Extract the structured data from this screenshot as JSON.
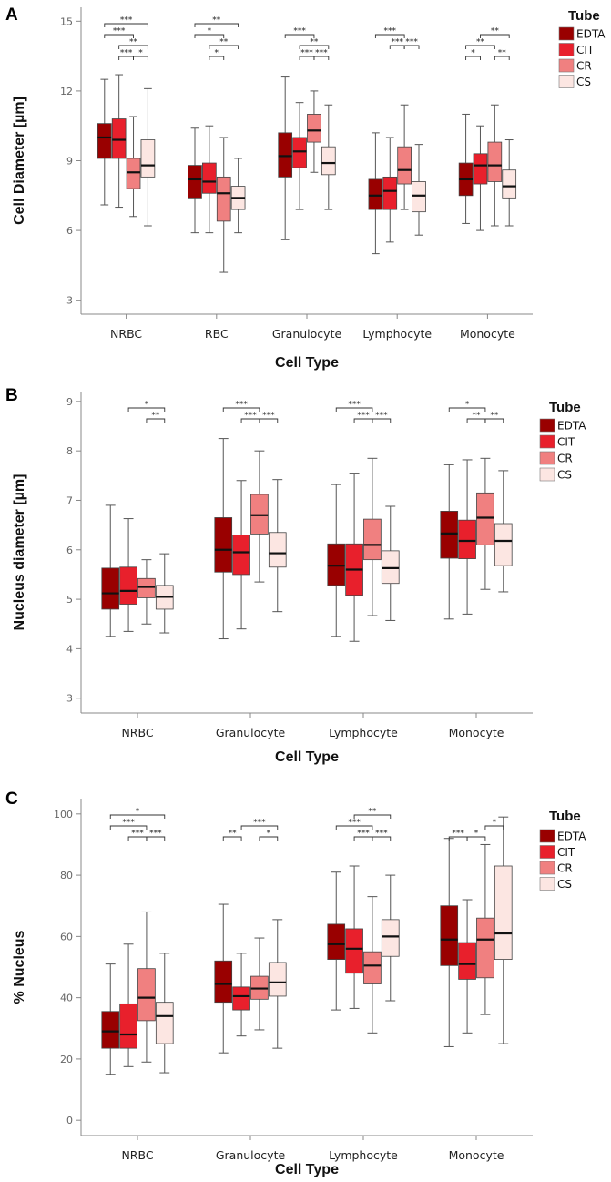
{
  "chart_data": [
    {
      "panel": "A",
      "type": "boxplot",
      "ylabel": "Cell Diameter [µm]",
      "xlabel": "Cell Type",
      "ylim": [
        2.4,
        15.6
      ],
      "yticks": [
        "3",
        "6",
        "9",
        "12",
        "15"
      ],
      "categories": [
        "NRBC",
        "RBC",
        "Granulocyte",
        "Lymphocyte",
        "Monocyte"
      ],
      "legend": {
        "title": "Tube",
        "entries": [
          "EDTA",
          "CIT",
          "CR",
          "CS"
        ]
      },
      "colors": [
        "#990000",
        "#e8202c",
        "#f08080",
        "#fce6e2"
      ],
      "series": [
        {
          "name": "EDTA",
          "boxes": [
            {
              "min": 7.1,
              "q1": 9.1,
              "median": 10.0,
              "q3": 10.6,
              "max": 12.5
            },
            {
              "min": 5.9,
              "q1": 7.4,
              "median": 8.2,
              "q3": 8.8,
              "max": 10.4
            },
            {
              "min": 5.6,
              "q1": 8.3,
              "median": 9.2,
              "q3": 10.2,
              "max": 12.6
            },
            {
              "min": 5.0,
              "q1": 6.9,
              "median": 7.5,
              "q3": 8.2,
              "max": 10.2
            },
            {
              "min": 6.3,
              "q1": 7.5,
              "median": 8.2,
              "q3": 8.9,
              "max": 11.0
            }
          ]
        },
        {
          "name": "CIT",
          "boxes": [
            {
              "min": 7.0,
              "q1": 9.1,
              "median": 9.9,
              "q3": 10.8,
              "max": 12.7
            },
            {
              "min": 5.9,
              "q1": 7.6,
              "median": 8.1,
              "q3": 8.9,
              "max": 10.5
            },
            {
              "min": 6.9,
              "q1": 8.7,
              "median": 9.4,
              "q3": 10.0,
              "max": 11.5
            },
            {
              "min": 5.5,
              "q1": 6.9,
              "median": 7.7,
              "q3": 8.3,
              "max": 10.0
            },
            {
              "min": 6.0,
              "q1": 8.0,
              "median": 8.8,
              "q3": 9.3,
              "max": 10.5
            }
          ]
        },
        {
          "name": "CR",
          "boxes": [
            {
              "min": 6.6,
              "q1": 7.8,
              "median": 8.5,
              "q3": 9.1,
              "max": 10.9
            },
            {
              "min": 4.2,
              "q1": 6.4,
              "median": 7.6,
              "q3": 8.3,
              "max": 10.0
            },
            {
              "min": 8.5,
              "q1": 9.8,
              "median": 10.3,
              "q3": 11.0,
              "max": 12.0
            },
            {
              "min": 6.9,
              "q1": 8.0,
              "median": 8.6,
              "q3": 9.6,
              "max": 11.4
            },
            {
              "min": 6.2,
              "q1": 8.1,
              "median": 8.8,
              "q3": 9.8,
              "max": 11.4
            }
          ]
        },
        {
          "name": "CS",
          "boxes": [
            {
              "min": 6.2,
              "q1": 8.3,
              "median": 8.8,
              "q3": 9.9,
              "max": 12.1
            },
            {
              "min": 5.9,
              "q1": 6.9,
              "median": 7.4,
              "q3": 7.9,
              "max": 9.1
            },
            {
              "min": 6.9,
              "q1": 8.4,
              "median": 8.9,
              "q3": 9.6,
              "max": 11.4
            },
            {
              "min": 5.8,
              "q1": 6.8,
              "median": 7.5,
              "q3": 8.1,
              "max": 9.7
            },
            {
              "min": 6.2,
              "q1": 7.4,
              "median": 7.9,
              "q3": 8.6,
              "max": 9.9
            }
          ]
        }
      ],
      "significance": [
        {
          "category": 0,
          "from": 0,
          "to": 3,
          "label": "***",
          "row": 0
        },
        {
          "category": 0,
          "from": 0,
          "to": 2,
          "label": "***",
          "row": 1
        },
        {
          "category": 0,
          "from": 1,
          "to": 3,
          "label": "**",
          "row": 2
        },
        {
          "category": 0,
          "from": 1,
          "to": 2,
          "label": "***",
          "row": 3
        },
        {
          "category": 0,
          "from": 2,
          "to": 3,
          "label": "*",
          "row": 3
        },
        {
          "category": 1,
          "from": 0,
          "to": 3,
          "label": "**",
          "row": 0
        },
        {
          "category": 1,
          "from": 0,
          "to": 2,
          "label": "*",
          "row": 1
        },
        {
          "category": 1,
          "from": 1,
          "to": 3,
          "label": "**",
          "row": 2
        },
        {
          "category": 1,
          "from": 1,
          "to": 2,
          "label": "*",
          "row": 3
        },
        {
          "category": 2,
          "from": 0,
          "to": 2,
          "label": "***",
          "row": 1
        },
        {
          "category": 2,
          "from": 1,
          "to": 3,
          "label": "**",
          "row": 2
        },
        {
          "category": 2,
          "from": 1,
          "to": 2,
          "label": "***",
          "row": 3
        },
        {
          "category": 2,
          "from": 2,
          "to": 3,
          "label": "***",
          "row": 3
        },
        {
          "category": 3,
          "from": 0,
          "to": 2,
          "label": "***",
          "row": 1
        },
        {
          "category": 3,
          "from": 1,
          "to": 2,
          "label": "***",
          "row": 2
        },
        {
          "category": 3,
          "from": 2,
          "to": 3,
          "label": "***",
          "row": 2
        },
        {
          "category": 4,
          "from": 1,
          "to": 3,
          "label": "**",
          "row": 1
        },
        {
          "category": 4,
          "from": 0,
          "to": 2,
          "label": "**",
          "row": 2
        },
        {
          "category": 4,
          "from": 0,
          "to": 1,
          "label": "*",
          "row": 3
        },
        {
          "category": 4,
          "from": 2,
          "to": 3,
          "label": "**",
          "row": 3
        }
      ]
    },
    {
      "panel": "B",
      "type": "boxplot",
      "ylabel": "Nucleus diameter [µm]",
      "xlabel": "Cell Type",
      "ylim": [
        2.7,
        9.2
      ],
      "yticks": [
        "3",
        "4",
        "5",
        "6",
        "7",
        "8",
        "9"
      ],
      "categories": [
        "NRBC",
        "Granulocyte",
        "Lymphocyte",
        "Monocyte"
      ],
      "legend": {
        "title": "Tube",
        "entries": [
          "EDTA",
          "CIT",
          "CR",
          "CS"
        ]
      },
      "colors": [
        "#990000",
        "#e8202c",
        "#f08080",
        "#fce6e2"
      ],
      "series": [
        {
          "name": "EDTA",
          "boxes": [
            {
              "min": 4.25,
              "q1": 4.8,
              "median": 5.12,
              "q3": 5.63,
              "max": 6.9
            },
            {
              "min": 4.2,
              "q1": 5.55,
              "median": 6.0,
              "q3": 6.65,
              "max": 8.25
            },
            {
              "min": 4.25,
              "q1": 5.28,
              "median": 5.68,
              "q3": 6.12,
              "max": 7.32
            },
            {
              "min": 4.6,
              "q1": 5.83,
              "median": 6.33,
              "q3": 6.78,
              "max": 7.72
            }
          ]
        },
        {
          "name": "CIT",
          "boxes": [
            {
              "min": 4.35,
              "q1": 4.9,
              "median": 5.17,
              "q3": 5.65,
              "max": 6.63
            },
            {
              "min": 4.4,
              "q1": 5.5,
              "median": 5.95,
              "q3": 6.3,
              "max": 7.4
            },
            {
              "min": 4.15,
              "q1": 5.08,
              "median": 5.6,
              "q3": 6.12,
              "max": 7.55
            },
            {
              "min": 4.7,
              "q1": 5.82,
              "median": 6.18,
              "q3": 6.6,
              "max": 7.82
            }
          ]
        },
        {
          "name": "CR",
          "boxes": [
            {
              "min": 4.5,
              "q1": 5.03,
              "median": 5.25,
              "q3": 5.42,
              "max": 5.8
            },
            {
              "min": 5.35,
              "q1": 6.32,
              "median": 6.7,
              "q3": 7.12,
              "max": 8.0
            },
            {
              "min": 4.67,
              "q1": 5.8,
              "median": 6.1,
              "q3": 6.62,
              "max": 7.85
            },
            {
              "min": 5.2,
              "q1": 6.1,
              "median": 6.65,
              "q3": 7.15,
              "max": 7.85
            }
          ]
        },
        {
          "name": "CS",
          "boxes": [
            {
              "min": 4.32,
              "q1": 4.8,
              "median": 5.05,
              "q3": 5.28,
              "max": 5.92
            },
            {
              "min": 4.75,
              "q1": 5.65,
              "median": 5.93,
              "q3": 6.35,
              "max": 7.42
            },
            {
              "min": 4.57,
              "q1": 5.32,
              "median": 5.63,
              "q3": 5.98,
              "max": 6.88
            },
            {
              "min": 5.15,
              "q1": 5.68,
              "median": 6.18,
              "q3": 6.53,
              "max": 7.6
            }
          ]
        }
      ],
      "significance": [
        {
          "category": 0,
          "from": 1,
          "to": 3,
          "label": "*",
          "row": 0
        },
        {
          "category": 0,
          "from": 2,
          "to": 3,
          "label": "**",
          "row": 1
        },
        {
          "category": 1,
          "from": 0,
          "to": 2,
          "label": "***",
          "row": 0
        },
        {
          "category": 1,
          "from": 1,
          "to": 2,
          "label": "***",
          "row": 1
        },
        {
          "category": 1,
          "from": 2,
          "to": 3,
          "label": "***",
          "row": 1
        },
        {
          "category": 2,
          "from": 0,
          "to": 2,
          "label": "***",
          "row": 0
        },
        {
          "category": 2,
          "from": 1,
          "to": 2,
          "label": "***",
          "row": 1
        },
        {
          "category": 2,
          "from": 2,
          "to": 3,
          "label": "***",
          "row": 1
        },
        {
          "category": 3,
          "from": 0,
          "to": 2,
          "label": "*",
          "row": 0
        },
        {
          "category": 3,
          "from": 1,
          "to": 2,
          "label": "**",
          "row": 1
        },
        {
          "category": 3,
          "from": 2,
          "to": 3,
          "label": "**",
          "row": 1
        }
      ]
    },
    {
      "panel": "C",
      "type": "boxplot",
      "ylabel": "% Nucleus",
      "xlabel": "Cell Type",
      "ylim": [
        -5,
        105
      ],
      "yticks": [
        "0",
        "20",
        "40",
        "60",
        "80",
        "100"
      ],
      "categories": [
        "NRBC",
        "Granulocyte",
        "Lymphocyte",
        "Monocyte"
      ],
      "legend": {
        "title": "Tube",
        "entries": [
          "EDTA",
          "CIT",
          "CR",
          "CS"
        ]
      },
      "colors": [
        "#990000",
        "#e8202c",
        "#f08080",
        "#fce6e2"
      ],
      "series": [
        {
          "name": "EDTA",
          "boxes": [
            {
              "min": 15,
              "q1": 23.5,
              "median": 29,
              "q3": 35.5,
              "max": 51
            },
            {
              "min": 22,
              "q1": 38.5,
              "median": 44.5,
              "q3": 52,
              "max": 70.5
            },
            {
              "min": 36,
              "q1": 52.5,
              "median": 57.5,
              "q3": 64,
              "max": 81
            },
            {
              "min": 24,
              "q1": 50.5,
              "median": 59,
              "q3": 70,
              "max": 92
            }
          ]
        },
        {
          "name": "CIT",
          "boxes": [
            {
              "min": 17.5,
              "q1": 23.5,
              "median": 28,
              "q3": 38,
              "max": 57.5
            },
            {
              "min": 27.5,
              "q1": 36,
              "median": 40.5,
              "q3": 43.5,
              "max": 54.5
            },
            {
              "min": 36.5,
              "q1": 48,
              "median": 56,
              "q3": 62.5,
              "max": 83
            },
            {
              "min": 28.5,
              "q1": 46,
              "median": 51,
              "q3": 58,
              "max": 72
            }
          ]
        },
        {
          "name": "CR",
          "boxes": [
            {
              "min": 19,
              "q1": 32.5,
              "median": 40,
              "q3": 49.5,
              "max": 68
            },
            {
              "min": 29.5,
              "q1": 39.5,
              "median": 43,
              "q3": 47,
              "max": 59.5
            },
            {
              "min": 28.5,
              "q1": 44.5,
              "median": 50.5,
              "q3": 55,
              "max": 73
            },
            {
              "min": 34.5,
              "q1": 46.5,
              "median": 59,
              "q3": 66,
              "max": 90
            }
          ]
        },
        {
          "name": "CS",
          "boxes": [
            {
              "min": 15.5,
              "q1": 25,
              "median": 34,
              "q3": 38.5,
              "max": 54.5
            },
            {
              "min": 23.5,
              "q1": 40.5,
              "median": 45,
              "q3": 51.5,
              "max": 65.5
            },
            {
              "min": 39,
              "q1": 53.5,
              "median": 60,
              "q3": 65.5,
              "max": 80
            },
            {
              "min": 25,
              "q1": 52.5,
              "median": 61,
              "q3": 83,
              "max": 99
            }
          ]
        }
      ],
      "significance": [
        {
          "category": 0,
          "from": 0,
          "to": 3,
          "label": "*",
          "row": 0
        },
        {
          "category": 0,
          "from": 0,
          "to": 2,
          "label": "***",
          "row": 1
        },
        {
          "category": 0,
          "from": 1,
          "to": 2,
          "label": "***",
          "row": 2
        },
        {
          "category": 0,
          "from": 2,
          "to": 3,
          "label": "***",
          "row": 2
        },
        {
          "category": 1,
          "from": 1,
          "to": 3,
          "label": "***",
          "row": 1
        },
        {
          "category": 1,
          "from": 0,
          "to": 1,
          "label": "**",
          "row": 2
        },
        {
          "category": 1,
          "from": 2,
          "to": 3,
          "label": "*",
          "row": 2
        },
        {
          "category": 2,
          "from": 1,
          "to": 3,
          "label": "**",
          "row": 0
        },
        {
          "category": 2,
          "from": 0,
          "to": 2,
          "label": "***",
          "row": 1
        },
        {
          "category": 2,
          "from": 1,
          "to": 2,
          "label": "***",
          "row": 2
        },
        {
          "category": 2,
          "from": 2,
          "to": 3,
          "label": "***",
          "row": 2
        },
        {
          "category": 3,
          "from": 2,
          "to": 3,
          "label": "*",
          "row": 1
        },
        {
          "category": 3,
          "from": 0,
          "to": 1,
          "label": "***",
          "row": 2
        },
        {
          "category": 3,
          "from": 1,
          "to": 2,
          "label": "*",
          "row": 2
        }
      ]
    }
  ]
}
